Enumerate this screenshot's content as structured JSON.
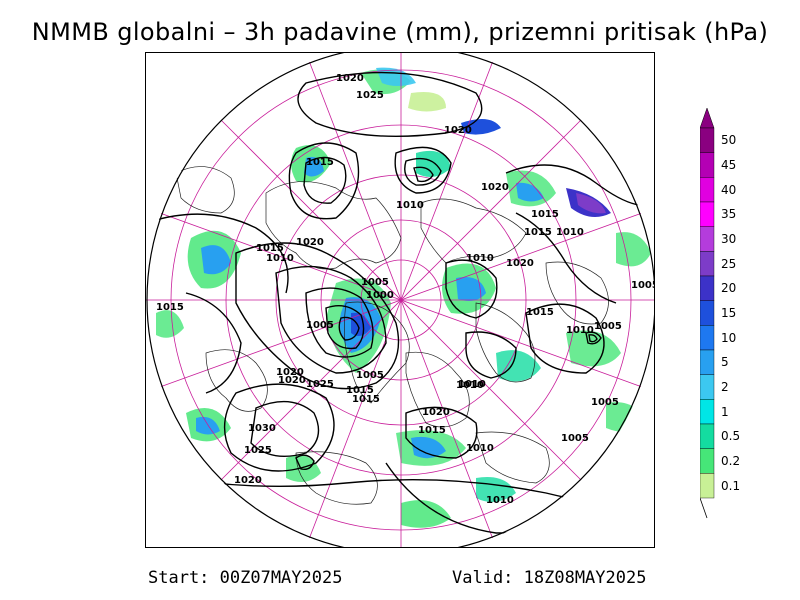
{
  "title": "NMMB globalni – 3h padavine (mm), prizemni pritisak (hPa)",
  "footer": {
    "start": "Start: 00Z07MAY2025",
    "valid": "Valid: 18Z08MAY2025"
  },
  "legend": {
    "labels": [
      "50",
      "45",
      "40",
      "35",
      "30",
      "25",
      "20",
      "15",
      "10",
      "5",
      "2",
      "1",
      "0.5",
      "0.2",
      "0.1"
    ],
    "colors": [
      "#8a0080",
      "#b400b4",
      "#e000e0",
      "#ff00ff",
      "#b43cdc",
      "#7d3cc8",
      "#3c32c8",
      "#1e50dc",
      "#1e78f0",
      "#28a0f0",
      "#3cc8f0",
      "#00e6e6",
      "#14dca0",
      "#46e678",
      "#c8f096"
    ]
  },
  "isobar_labels": [
    {
      "text": "1020"
    },
    {
      "text": "1025"
    },
    {
      "text": "1020"
    },
    {
      "text": "1015"
    },
    {
      "text": "1020"
    },
    {
      "text": "1010"
    },
    {
      "text": "1015"
    },
    {
      "text": "1015"
    },
    {
      "text": "1010"
    },
    {
      "text": "1020"
    },
    {
      "text": "1015"
    },
    {
      "text": "1010"
    },
    {
      "text": "1010"
    },
    {
      "text": "1020"
    },
    {
      "text": "1005"
    },
    {
      "text": "1000"
    },
    {
      "text": "1005"
    },
    {
      "text": "1015"
    },
    {
      "text": "1005"
    },
    {
      "text": "1010"
    },
    {
      "text": "1025"
    },
    {
      "text": "1020"
    },
    {
      "text": "1015"
    },
    {
      "text": "1010"
    },
    {
      "text": "1020"
    },
    {
      "text": "1015"
    },
    {
      "text": "1030"
    },
    {
      "text": "1025"
    },
    {
      "text": "1020"
    },
    {
      "text": "1010"
    },
    {
      "text": "1010"
    },
    {
      "text": "1005"
    },
    {
      "text": "1005"
    },
    {
      "text": "1005"
    },
    {
      "text": "1010"
    },
    {
      "text": "1015"
    },
    {
      "text": "1020"
    },
    {
      "text": "1015"
    },
    {
      "text": "1005"
    }
  ]
}
